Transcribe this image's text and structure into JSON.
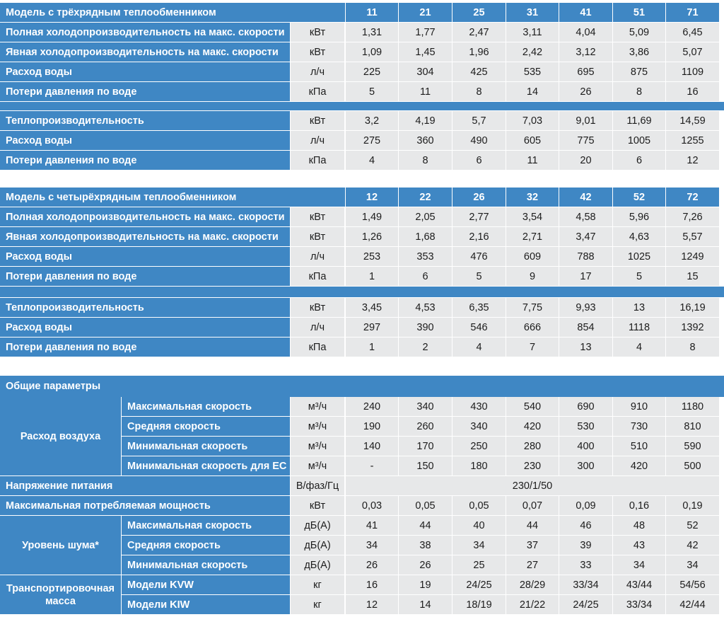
{
  "colors": {
    "header_bg": "#3f87c4",
    "body_bg": "#e7e8e9",
    "text": "#1c1c1c",
    "header_text": "#ffffff"
  },
  "section1": {
    "title": "Модель с трёхрядным теплообменником",
    "models": [
      "11",
      "21",
      "25",
      "31",
      "41",
      "51",
      "71"
    ],
    "rows": [
      {
        "label": "Полная холодопроизводительность на макс. скорости",
        "unit": "кВт",
        "values": [
          "1,31",
          "1,77",
          "2,47",
          "3,11",
          "4,04",
          "5,09",
          "6,45"
        ]
      },
      {
        "label": "Явная холодопроизводительность на макс. скорости",
        "unit": "кВт",
        "values": [
          "1,09",
          "1,45",
          "1,96",
          "2,42",
          "3,12",
          "3,86",
          "5,07"
        ]
      },
      {
        "label": "Расход воды",
        "unit": "л/ч",
        "values": [
          "225",
          "304",
          "425",
          "535",
          "695",
          "875",
          "1109"
        ]
      },
      {
        "label": "Потери давления по воде",
        "unit": "кПа",
        "values": [
          "5",
          "11",
          "8",
          "14",
          "26",
          "8",
          "16"
        ]
      }
    ],
    "heat_rows": [
      {
        "label": "Теплопроизводительность",
        "unit": "кВт",
        "values": [
          "3,2",
          "4,19",
          "5,7",
          "7,03",
          "9,01",
          "11,69",
          "14,59"
        ]
      },
      {
        "label": "Расход воды",
        "unit": "л/ч",
        "values": [
          "275",
          "360",
          "490",
          "605",
          "775",
          "1005",
          "1255"
        ]
      },
      {
        "label": "Потери давления по воде",
        "unit": "кПа",
        "values": [
          "4",
          "8",
          "6",
          "11",
          "20",
          "6",
          "12"
        ]
      }
    ]
  },
  "section2": {
    "title": "Модель с четырёхрядным теплообменником",
    "models": [
      "12",
      "22",
      "26",
      "32",
      "42",
      "52",
      "72"
    ],
    "rows": [
      {
        "label": "Полная холодопроизводительность на макс. скорости",
        "unit": "кВт",
        "values": [
          "1,49",
          "2,05",
          "2,77",
          "3,54",
          "4,58",
          "5,96",
          "7,26"
        ]
      },
      {
        "label": "Явная холодопроизводительность на макс. скорости",
        "unit": "кВт",
        "values": [
          "1,26",
          "1,68",
          "2,16",
          "2,71",
          "3,47",
          "4,63",
          "5,57"
        ]
      },
      {
        "label": "Расход воды",
        "unit": "л/ч",
        "values": [
          "253",
          "353",
          "476",
          "609",
          "788",
          "1025",
          "1249"
        ]
      },
      {
        "label": "Потери давления по воде",
        "unit": "кПа",
        "values": [
          "1",
          "6",
          "5",
          "9",
          "17",
          "5",
          "15"
        ]
      }
    ],
    "heat_rows": [
      {
        "label": "Теплопроизводительность",
        "unit": "кВт",
        "values": [
          "3,45",
          "4,53",
          "6,35",
          "7,75",
          "9,93",
          "13",
          "16,19"
        ]
      },
      {
        "label": "Расход воды",
        "unit": "л/ч",
        "values": [
          "297",
          "390",
          "546",
          "666",
          "854",
          "1118",
          "1392"
        ]
      },
      {
        "label": "Потери давления по воде",
        "unit": "кПа",
        "values": [
          "1",
          "2",
          "4",
          "7",
          "13",
          "4",
          "8"
        ]
      }
    ]
  },
  "general": {
    "title": "Общие параметры",
    "airflow": {
      "label": "Расход воздуха",
      "rows": [
        {
          "label": "Максимальная скорость",
          "unit": "м³/ч",
          "values": [
            "240",
            "340",
            "430",
            "540",
            "690",
            "910",
            "1180"
          ]
        },
        {
          "label": "Средняя скорость",
          "unit": "м³/ч",
          "values": [
            "190",
            "260",
            "340",
            "420",
            "530",
            "730",
            "810"
          ]
        },
        {
          "label": "Минимальная скорость",
          "unit": "м³/ч",
          "values": [
            "140",
            "170",
            "250",
            "280",
            "400",
            "510",
            "590"
          ]
        },
        {
          "label": "Минимальная скорость для EC",
          "unit": "м³/ч",
          "values": [
            "-",
            "150",
            "180",
            "230",
            "300",
            "420",
            "500"
          ]
        }
      ]
    },
    "voltage": {
      "label": "Напряжение питания",
      "unit": "В/фаз/Гц",
      "value": "230/1/50"
    },
    "power": {
      "label": "Максимальная потребляемая мощность",
      "unit": "кВт",
      "values": [
        "0,03",
        "0,05",
        "0,05",
        "0,07",
        "0,09",
        "0,16",
        "0,19"
      ]
    },
    "noise": {
      "label": "Уровень шума*",
      "rows": [
        {
          "label": "Максимальная скорость",
          "unit": "дБ(А)",
          "values": [
            "41",
            "44",
            "40",
            "44",
            "46",
            "48",
            "52"
          ]
        },
        {
          "label": "Средняя скорость",
          "unit": "дБ(А)",
          "values": [
            "34",
            "38",
            "34",
            "37",
            "39",
            "43",
            "42"
          ]
        },
        {
          "label": "Минимальная скорость",
          "unit": "дБ(А)",
          "values": [
            "26",
            "26",
            "25",
            "27",
            "33",
            "34",
            "34"
          ]
        }
      ]
    },
    "mass": {
      "label": "Транспортировочная масса",
      "rows": [
        {
          "label": "Модели KVW",
          "unit": "кг",
          "values": [
            "16",
            "19",
            "24/25",
            "28/29",
            "33/34",
            "43/44",
            "54/56"
          ]
        },
        {
          "label": "Модели KIW",
          "unit": "кг",
          "values": [
            "12",
            "14",
            "18/19",
            "21/22",
            "24/25",
            "33/34",
            "42/44"
          ]
        }
      ]
    }
  }
}
